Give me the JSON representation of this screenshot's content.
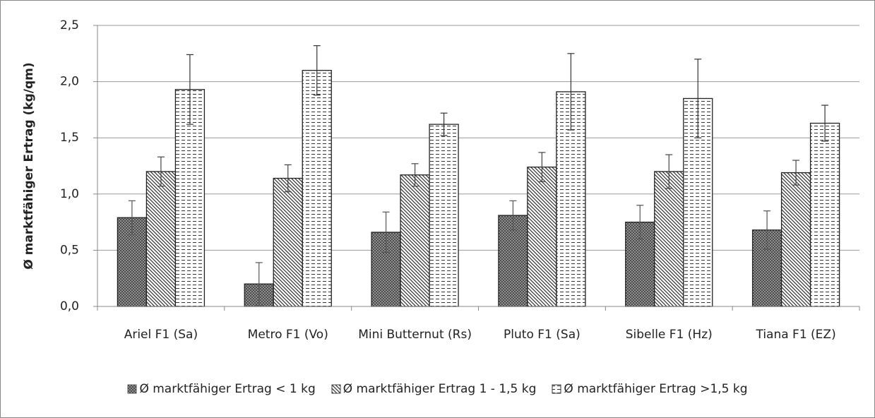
{
  "chart_data": {
    "type": "bar",
    "y_label": "Ø marktfähiger Ertrag (kg/qm)",
    "categories": [
      "Ariel F1 (Sa)",
      "Metro F1 (Vo)",
      "Mini Butternut (Rs)",
      "Pluto F1 (Sa)",
      "Sibelle F1 (Hz)",
      "Tiana F1 (EZ)"
    ],
    "series": [
      {
        "name": "Ø marktfähiger Ertrag < 1 kg",
        "color": "#555555",
        "values": [
          0.79,
          0.2,
          0.66,
          0.81,
          0.75,
          0.68
        ],
        "errors": [
          0.15,
          0.19,
          0.18,
          0.13,
          0.15,
          0.17
        ]
      },
      {
        "name": "Ø marktfähiger Ertrag 1 - 1,5 kg",
        "color": "#444444",
        "values": [
          1.2,
          1.14,
          1.17,
          1.24,
          1.2,
          1.19
        ],
        "errors": [
          0.13,
          0.12,
          0.1,
          0.13,
          0.15,
          0.11
        ]
      },
      {
        "name": "Ø marktfähiger Ertrag >1,5 kg",
        "color": "#333333",
        "values": [
          1.93,
          2.1,
          1.62,
          1.91,
          1.85,
          1.63
        ],
        "errors": [
          0.31,
          0.22,
          0.1,
          0.34,
          0.35,
          0.16
        ]
      }
    ],
    "ylim": [
      0,
      2.5
    ],
    "yticks": [
      {
        "value": 0,
        "label": "0,0"
      },
      {
        "value": 0.5,
        "label": "0,5"
      },
      {
        "value": 1,
        "label": "1,0"
      },
      {
        "value": 1.5,
        "label": "1,5"
      },
      {
        "value": 2,
        "label": "2,0"
      },
      {
        "value": 2.5,
        "label": "2,5"
      }
    ],
    "grid": true,
    "error_bars": true,
    "legend": "bottom"
  }
}
